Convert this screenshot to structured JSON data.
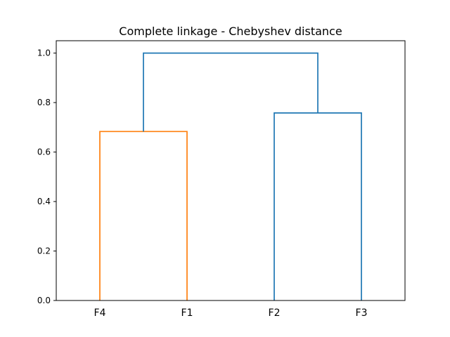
{
  "chart_data": {
    "type": "dendrogram",
    "title": "Complete linkage - Chebyshev distance",
    "xlabel": "",
    "ylabel": "",
    "ylim": [
      0,
      1.05
    ],
    "yticks": [
      0.0,
      0.2,
      0.4,
      0.6,
      0.8,
      1.0
    ],
    "ytick_labels": [
      "0.0",
      "0.2",
      "0.4",
      "0.6",
      "0.8",
      "1.0"
    ],
    "leaves": [
      "F4",
      "F1",
      "F2",
      "F3"
    ],
    "links": [
      {
        "left": "F4",
        "right": "F1",
        "height": 0.683,
        "color": "#ff7f0e"
      },
      {
        "left": "F2",
        "right": "F3",
        "height": 0.758,
        "color": "#1f77b4"
      },
      {
        "left": "F4+F1",
        "right": "F2+F3",
        "height": 1.0,
        "color": "#1f77b4"
      }
    ],
    "grid": false
  }
}
